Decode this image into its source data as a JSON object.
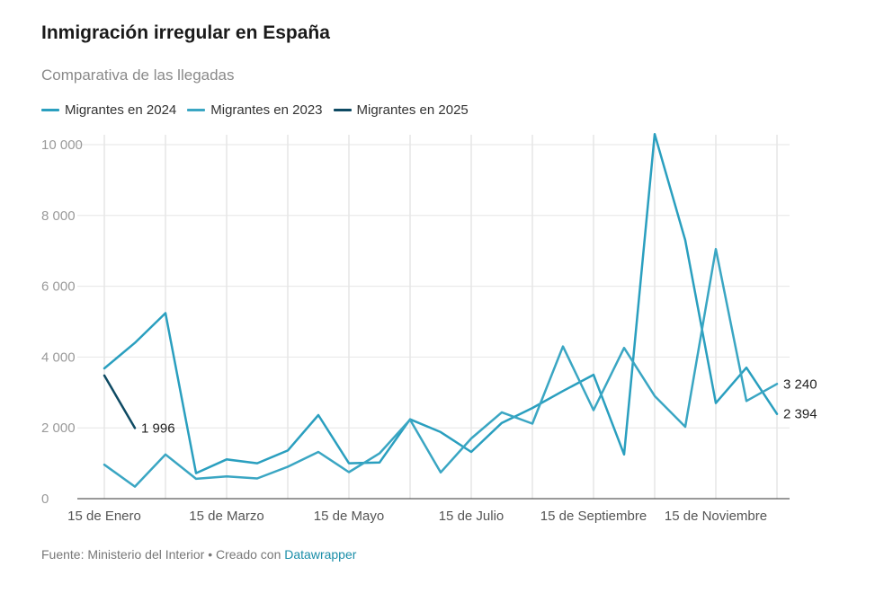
{
  "header": {
    "title": "Inmigración irregular en España",
    "subtitle": "Comparativa de las llegadas"
  },
  "footer": {
    "source": "Fuente: Ministerio del Interior • Creado con ",
    "link": "Datawrapper"
  },
  "chart_data": {
    "type": "line",
    "title": "Inmigración irregular en España",
    "subtitle": "Comparativa de las llegadas",
    "xlabel": "",
    "ylabel": "",
    "ylim": [
      0,
      10000
    ],
    "yticks": [
      0,
      2000,
      4000,
      6000,
      8000,
      10000
    ],
    "ytick_labels": [
      "0",
      "2 000",
      "4 000",
      "6 000",
      "8 000",
      "10 000"
    ],
    "xticks": [
      1,
      5,
      9,
      13,
      17,
      21
    ],
    "xtick_labels": [
      "15 de Enero",
      "15 de Marzo",
      "15 de Mayo",
      "15 de Julio",
      "15 de Septiembre",
      "15 de Noviembre"
    ],
    "xlim": [
      1,
      23
    ],
    "grid": true,
    "legend_position": "top-left",
    "series": [
      {
        "name": "Migrantes en 2024",
        "color": "#2a9fbf",
        "x": [
          1,
          2,
          3,
          4,
          5,
          6,
          7,
          8,
          9,
          10,
          11,
          12,
          13,
          14,
          15,
          16,
          17,
          18,
          19,
          20,
          21,
          22,
          23
        ],
        "values": [
          3680,
          4400,
          5240,
          720,
          1110,
          1000,
          1360,
          2360,
          1000,
          1020,
          2240,
          1880,
          1320,
          2140,
          2560,
          3040,
          3500,
          1250,
          10300,
          7300,
          2700,
          3700,
          2394
        ],
        "end_label": "2 394"
      },
      {
        "name": "Migrantes en 2023",
        "color": "#3aa6c3",
        "x": [
          1,
          2,
          3,
          4,
          5,
          6,
          7,
          8,
          9,
          10,
          11,
          12,
          13,
          14,
          15,
          16,
          17,
          18,
          19,
          20,
          21,
          22,
          23
        ],
        "values": [
          960,
          340,
          1250,
          560,
          630,
          570,
          900,
          1320,
          750,
          1280,
          2230,
          740,
          1700,
          2440,
          2120,
          4300,
          2500,
          4260,
          2900,
          2030,
          7050,
          2760,
          3240
        ],
        "end_label": "3 240"
      },
      {
        "name": "Migrantes en 2025",
        "color": "#0e4a63",
        "x": [
          1,
          2
        ],
        "values": [
          3480,
          1996
        ],
        "end_label": "1 996"
      }
    ]
  }
}
